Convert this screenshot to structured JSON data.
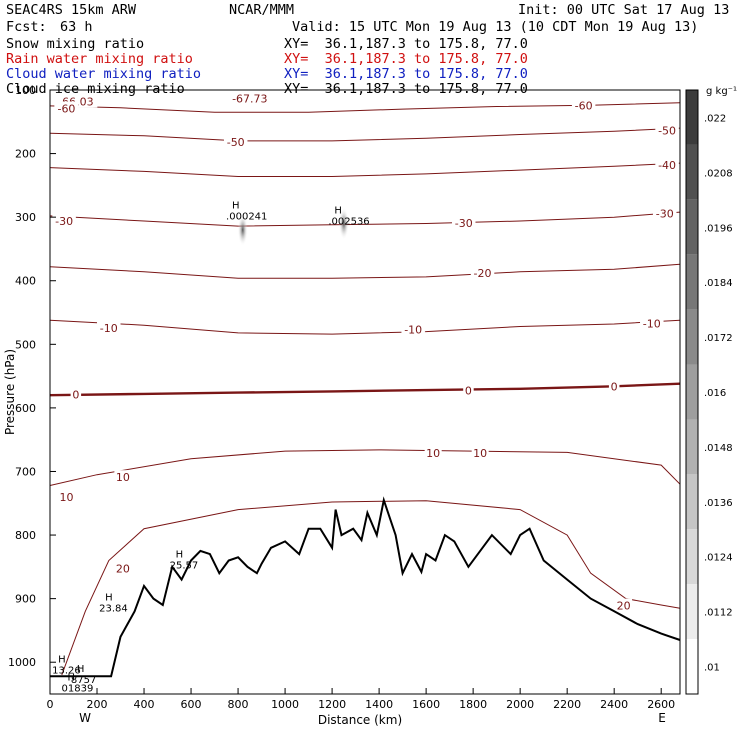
{
  "header": {
    "model": "SEAC4RS 15km ARW",
    "center": "NCAR/MMM",
    "init": "Init: 00 UTC Sat 17 Aug 13",
    "fcst_label": "Fcst:",
    "fcst_value": "63 h",
    "valid": "Valid: 15 UTC Mon 19 Aug 13 (10 CDT Mon 19 Aug 13)"
  },
  "fields": [
    {
      "name": "Snow mixing ratio",
      "xy": "XY=  36.1,187.3 to 175.8, 77.0",
      "color": "#000000"
    },
    {
      "name": "Rain water mixing ratio",
      "xy": "XY=  36.1,187.3 to 175.8, 77.0",
      "color": "#d01010"
    },
    {
      "name": "Cloud water mixing ratio",
      "xy": "XY=  36.1,187.3 to 175.8, 77.0",
      "color": "#1020c0"
    },
    {
      "name": "Cloud ice mixing ratio",
      "xy": "XY=  36.1,187.3 to 175.8, 77.0",
      "color": "#000000"
    }
  ],
  "colorbar": {
    "unit": "g kg⁻¹",
    "ticks": [
      ".022",
      ".0208",
      ".0196",
      ".0184",
      ".0172",
      ".016",
      ".0148",
      ".0136",
      ".0124",
      ".0112",
      ".01"
    ]
  },
  "chart_data": {
    "type": "contour cross-section",
    "xlabel": "Distance (km)",
    "ylabel": "Pressure (hPa)",
    "xlim": [
      0,
      2680
    ],
    "ylim": [
      1050,
      100
    ],
    "x_ticks": [
      0,
      200,
      400,
      600,
      800,
      1000,
      1200,
      1400,
      1600,
      1800,
      2000,
      2200,
      2400,
      2600
    ],
    "y_ticks": [
      100,
      200,
      300,
      400,
      500,
      600,
      700,
      800,
      900,
      1000
    ],
    "x_end_labels": {
      "west": "W",
      "east": "E"
    },
    "temperature_contours": [
      {
        "level": -60,
        "points": [
          [
            0,
            125
          ],
          [
            300,
            128
          ],
          [
            700,
            135
          ],
          [
            1100,
            135
          ],
          [
            1500,
            130
          ],
          [
            1900,
            126
          ],
          [
            2300,
            124
          ],
          [
            2680,
            120
          ]
        ]
      },
      {
        "level": -50,
        "points": [
          [
            0,
            168
          ],
          [
            400,
            172
          ],
          [
            800,
            180
          ],
          [
            1200,
            180
          ],
          [
            1600,
            176
          ],
          [
            2000,
            170
          ],
          [
            2400,
            165
          ],
          [
            2680,
            160
          ]
        ]
      },
      {
        "level": -40,
        "points": [
          [
            0,
            222
          ],
          [
            400,
            228
          ],
          [
            800,
            236
          ],
          [
            1200,
            236
          ],
          [
            1600,
            232
          ],
          [
            2000,
            226
          ],
          [
            2400,
            220
          ],
          [
            2680,
            215
          ]
        ]
      },
      {
        "level": -30,
        "points": [
          [
            0,
            298
          ],
          [
            400,
            306
          ],
          [
            800,
            314
          ],
          [
            1200,
            312
          ],
          [
            1600,
            310
          ],
          [
            2000,
            306
          ],
          [
            2400,
            300
          ],
          [
            2680,
            292
          ]
        ]
      },
      {
        "level": -20,
        "points": [
          [
            0,
            378
          ],
          [
            400,
            386
          ],
          [
            800,
            396
          ],
          [
            1200,
            396
          ],
          [
            1600,
            394
          ],
          [
            2000,
            386
          ],
          [
            2400,
            382
          ],
          [
            2680,
            374
          ]
        ]
      },
      {
        "level": -10,
        "points": [
          [
            0,
            462
          ],
          [
            400,
            470
          ],
          [
            800,
            482
          ],
          [
            1200,
            484
          ],
          [
            1600,
            480
          ],
          [
            2000,
            472
          ],
          [
            2400,
            468
          ],
          [
            2680,
            462
          ]
        ]
      },
      {
        "level": 0,
        "points": [
          [
            0,
            580
          ],
          [
            400,
            578
          ],
          [
            800,
            576
          ],
          [
            1200,
            574
          ],
          [
            1600,
            572
          ],
          [
            2000,
            570
          ],
          [
            2400,
            566
          ],
          [
            2680,
            562
          ]
        ]
      },
      {
        "level": 10,
        "points": [
          [
            0,
            722
          ],
          [
            200,
            705
          ],
          [
            600,
            680
          ],
          [
            1000,
            668
          ],
          [
            1400,
            666
          ],
          [
            1800,
            668
          ],
          [
            2200,
            670
          ],
          [
            2600,
            690
          ],
          [
            2680,
            720
          ]
        ]
      },
      {
        "level": 20,
        "points": [
          [
            50,
            1020
          ],
          [
            150,
            920
          ],
          [
            250,
            840
          ],
          [
            400,
            790
          ],
          [
            800,
            760
          ],
          [
            1200,
            748
          ],
          [
            1600,
            746
          ],
          [
            2000,
            760
          ],
          [
            2200,
            800
          ],
          [
            2300,
            860
          ],
          [
            2450,
            900
          ],
          [
            2600,
            910
          ],
          [
            2680,
            915
          ]
        ]
      }
    ],
    "labels": [
      {
        "text": "-66.03",
        "x": 110,
        "y": 118
      },
      {
        "text": "-67.73",
        "x": 850,
        "y": 113
      },
      {
        "text": "-60",
        "x": 70,
        "y": 129
      },
      {
        "text": "-60",
        "x": 2270,
        "y": 124
      },
      {
        "text": "-50",
        "x": 790,
        "y": 182
      },
      {
        "text": "-50",
        "x": 2625,
        "y": 164
      },
      {
        "text": "-40",
        "x": 2625,
        "y": 218
      },
      {
        "text": "-30",
        "x": 60,
        "y": 306
      },
      {
        "text": "-30",
        "x": 1760,
        "y": 309
      },
      {
        "text": "-30",
        "x": 2615,
        "y": 294
      },
      {
        "text": "-20",
        "x": 1840,
        "y": 388
      },
      {
        "text": "-10",
        "x": 2560,
        "y": 467
      },
      {
        "text": "-10",
        "x": 250,
        "y": 474
      },
      {
        "text": "-10",
        "x": 1545,
        "y": 477
      },
      {
        "text": "0",
        "x": 110,
        "y": 579
      },
      {
        "text": "0",
        "x": 1780,
        "y": 573
      },
      {
        "text": "0",
        "x": 2400,
        "y": 566
      },
      {
        "text": "10",
        "x": 70,
        "y": 740
      },
      {
        "text": "10",
        "x": 310,
        "y": 709
      },
      {
        "text": "10",
        "x": 1630,
        "y": 671
      },
      {
        "text": "10",
        "x": 1830,
        "y": 671
      },
      {
        "text": "20",
        "x": 310,
        "y": 853
      },
      {
        "text": "20",
        "x": 2440,
        "y": 911
      }
    ],
    "extrema": [
      {
        "type": "H",
        "value": ".000241",
        "x": 800,
        "y": 296
      },
      {
        "type": "H",
        "value": ".002536",
        "x": 1235,
        "y": 304
      },
      {
        "type": "H",
        "value": "25.57",
        "x": 560,
        "y": 845
      },
      {
        "type": "H",
        "value": "23.84",
        "x": 260,
        "y": 912
      },
      {
        "type": "H",
        "value": "13.26",
        "x": 60,
        "y": 1010
      },
      {
        "type": "H",
        "value": "8757",
        "x": 140,
        "y": 1025
      },
      {
        "type": "H",
        "value": "01839",
        "x": 100,
        "y": 1038
      }
    ],
    "terrain": [
      [
        0,
        1022
      ],
      [
        260,
        1022
      ],
      [
        300,
        960
      ],
      [
        360,
        920
      ],
      [
        400,
        880
      ],
      [
        440,
        900
      ],
      [
        480,
        910
      ],
      [
        520,
        850
      ],
      [
        560,
        870
      ],
      [
        600,
        840
      ],
      [
        640,
        825
      ],
      [
        680,
        830
      ],
      [
        720,
        860
      ],
      [
        760,
        840
      ],
      [
        800,
        835
      ],
      [
        840,
        850
      ],
      [
        880,
        860
      ],
      [
        900,
        845
      ],
      [
        940,
        820
      ],
      [
        1000,
        810
      ],
      [
        1060,
        830
      ],
      [
        1100,
        790
      ],
      [
        1150,
        790
      ],
      [
        1200,
        820
      ],
      [
        1215,
        760
      ],
      [
        1240,
        800
      ],
      [
        1290,
        790
      ],
      [
        1325,
        808
      ],
      [
        1350,
        765
      ],
      [
        1390,
        800
      ],
      [
        1420,
        745
      ],
      [
        1470,
        800
      ],
      [
        1500,
        860
      ],
      [
        1540,
        830
      ],
      [
        1580,
        858
      ],
      [
        1600,
        830
      ],
      [
        1640,
        840
      ],
      [
        1680,
        800
      ],
      [
        1720,
        810
      ],
      [
        1780,
        850
      ],
      [
        1840,
        820
      ],
      [
        1880,
        800
      ],
      [
        1960,
        830
      ],
      [
        2000,
        800
      ],
      [
        2040,
        790
      ],
      [
        2100,
        840
      ],
      [
        2200,
        870
      ],
      [
        2300,
        900
      ],
      [
        2400,
        920
      ],
      [
        2500,
        940
      ],
      [
        2600,
        955
      ],
      [
        2680,
        965
      ]
    ],
    "snow_or_ice_extrema_cores": [
      {
        "x": 820,
        "y": 320
      },
      {
        "x": 1250,
        "y": 310
      }
    ]
  }
}
